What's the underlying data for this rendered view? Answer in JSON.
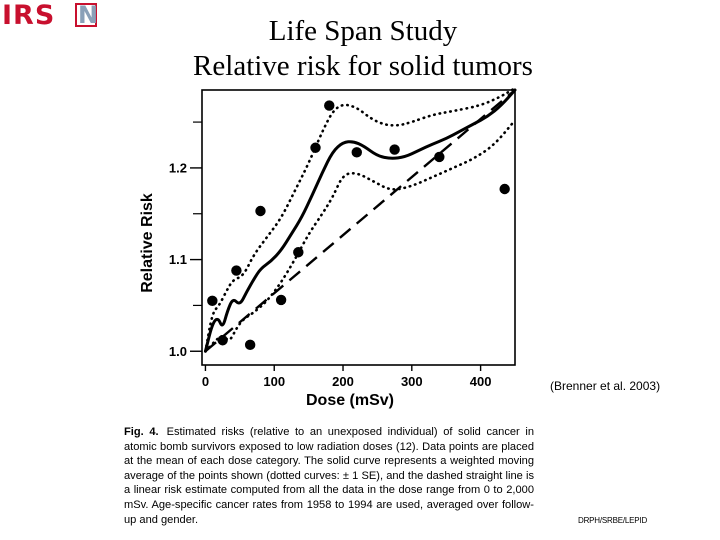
{
  "logo": {
    "text": "IRS",
    "letter": "N"
  },
  "title": {
    "line1": "Life Span Study",
    "line2": "Relative risk for solid tumors"
  },
  "citation": "(Brenner et al. 2003)",
  "caption": {
    "fig_label": "Fig. 4.",
    "text": "Estimated risks (relative to an unexposed individual) of solid cancer in atomic bomb survivors exposed to low radiation doses (12). Data points are placed at the mean of each dose category. The solid curve represents a weighted moving average of the points shown (dotted curves: ± 1 SE), and the dashed straight line is a linear risk estimate computed from all the data in the dose range from 0 to 2,000 mSv. Age-specific cancer rates from 1958 to 1994 are used, averaged over follow-up and gender."
  },
  "footer": "DRPH/SRBE/LEPID",
  "chart_data": {
    "type": "scatter",
    "xlabel": "Dose (mSv)",
    "ylabel": "Relative Risk",
    "xlim": [
      -5,
      450
    ],
    "ylim": [
      0.985,
      1.285
    ],
    "x_ticks": [
      0,
      100,
      200,
      300,
      400
    ],
    "y_ticks": [
      1.0,
      1.1,
      1.2
    ],
    "y_ticks_unlabeled": [
      1.05,
      1.15,
      1.25
    ],
    "points": [
      {
        "x": 10,
        "y": 1.055
      },
      {
        "x": 25,
        "y": 1.012
      },
      {
        "x": 45,
        "y": 1.088
      },
      {
        "x": 65,
        "y": 1.007
      },
      {
        "x": 80,
        "y": 1.153
      },
      {
        "x": 110,
        "y": 1.056
      },
      {
        "x": 135,
        "y": 1.108
      },
      {
        "x": 160,
        "y": 1.222
      },
      {
        "x": 180,
        "y": 1.268
      },
      {
        "x": 220,
        "y": 1.217
      },
      {
        "x": 275,
        "y": 1.22
      },
      {
        "x": 340,
        "y": 1.212
      },
      {
        "x": 435,
        "y": 1.177
      }
    ],
    "series": [
      {
        "style": "solid",
        "x": [
          0,
          10,
          18,
          25,
          32,
          40,
          50,
          60,
          70,
          80,
          95,
          110,
          125,
          140,
          155,
          170,
          185,
          200,
          215,
          230,
          250,
          270,
          290,
          310,
          330,
          350,
          370,
          390,
          410,
          430,
          450
        ],
        "y": [
          1.0,
          1.03,
          1.037,
          1.025,
          1.044,
          1.058,
          1.05,
          1.065,
          1.078,
          1.09,
          1.098,
          1.11,
          1.128,
          1.146,
          1.17,
          1.195,
          1.218,
          1.228,
          1.229,
          1.224,
          1.213,
          1.21,
          1.212,
          1.219,
          1.226,
          1.232,
          1.24,
          1.248,
          1.256,
          1.268,
          1.285
        ]
      },
      {
        "style": "dotted",
        "x": [
          0,
          10,
          20,
          30,
          40,
          55,
          70,
          90,
          110,
          130,
          150,
          170,
          185,
          200,
          220,
          240,
          260,
          280,
          300,
          330,
          360,
          400,
          430,
          450
        ],
        "y": [
          1.0,
          1.042,
          1.05,
          1.065,
          1.078,
          1.082,
          1.105,
          1.125,
          1.145,
          1.175,
          1.205,
          1.24,
          1.262,
          1.27,
          1.266,
          1.254,
          1.247,
          1.246,
          1.25,
          1.258,
          1.262,
          1.268,
          1.278,
          1.287
        ]
      },
      {
        "style": "dotted",
        "x": [
          0,
          15,
          25,
          35,
          45,
          55,
          70,
          90,
          110,
          130,
          150,
          170,
          185,
          200,
          220,
          245,
          270,
          300,
          330,
          360,
          390,
          420,
          450
        ],
        "y": [
          1.0,
          1.012,
          1.018,
          1.01,
          1.025,
          1.035,
          1.042,
          1.055,
          1.075,
          1.1,
          1.128,
          1.15,
          1.168,
          1.193,
          1.195,
          1.185,
          1.175,
          1.18,
          1.19,
          1.2,
          1.21,
          1.225,
          1.252
        ]
      },
      {
        "style": "dashed",
        "x": [
          0,
          450
        ],
        "y": [
          1.0,
          1.285
        ]
      }
    ]
  }
}
